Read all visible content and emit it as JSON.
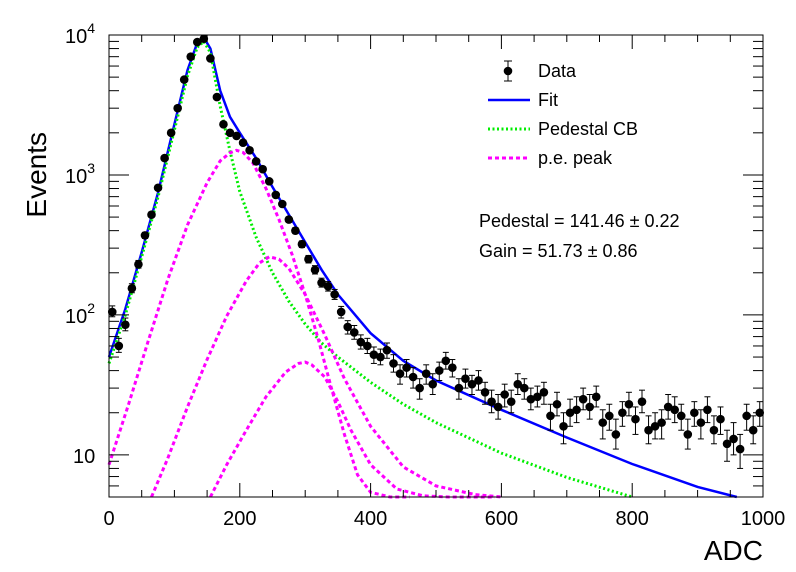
{
  "chart_data": {
    "type": "scatter",
    "xlabel": "ADC",
    "ylabel": "Events",
    "xlim": [
      0,
      1000
    ],
    "ylim": [
      5,
      10000
    ],
    "y_scale": "log",
    "grid": false,
    "legend_position": "top-right",
    "x_ticks": [
      {
        "value": 0,
        "label": "0"
      },
      {
        "value": 200,
        "label": "200"
      },
      {
        "value": 400,
        "label": "400"
      },
      {
        "value": 600,
        "label": "600"
      },
      {
        "value": 800,
        "label": "800"
      },
      {
        "value": 1000,
        "label": "1000"
      }
    ],
    "y_ticks": [
      {
        "value": 10,
        "label": "10",
        "sup": ""
      },
      {
        "value": 100,
        "label": "10",
        "sup": "2"
      },
      {
        "value": 1000,
        "label": "10",
        "sup": "3"
      },
      {
        "value": 10000,
        "label": "10",
        "sup": "4"
      }
    ],
    "legend": [
      {
        "label": "Data",
        "style": "marker",
        "color": "#000000"
      },
      {
        "label": "Fit",
        "style": "solid",
        "color": "#0000ff"
      },
      {
        "label": "Pedestal CB",
        "style": "dotted",
        "color": "#00ee00"
      },
      {
        "label": "p.e. peak",
        "style": "dashed",
        "color": "#ff00ff"
      }
    ],
    "annotations": [
      {
        "text": "Pedestal = 141.46 ± 0.22"
      },
      {
        "text": "Gain = 51.73 ± 0.86"
      }
    ],
    "series": [
      {
        "name": "Data",
        "style": "points",
        "color": "#000000",
        "x": [
          5,
          15,
          25,
          35,
          45,
          55,
          65,
          75,
          85,
          95,
          105,
          115,
          125,
          135,
          145,
          155,
          165,
          175,
          185,
          195,
          205,
          215,
          225,
          235,
          245,
          255,
          265,
          275,
          285,
          295,
          305,
          315,
          325,
          335,
          345,
          355,
          365,
          375,
          385,
          395,
          405,
          415,
          425,
          435,
          445,
          455,
          465,
          475,
          485,
          495,
          505,
          515,
          525,
          535,
          545,
          555,
          565,
          575,
          585,
          595,
          605,
          615,
          625,
          635,
          645,
          655,
          665,
          675,
          685,
          695,
          705,
          715,
          725,
          735,
          745,
          755,
          765,
          775,
          785,
          795,
          805,
          815,
          825,
          835,
          845,
          855,
          865,
          875,
          885,
          895,
          905,
          915,
          925,
          935,
          945,
          955,
          965,
          975,
          985,
          995
        ],
        "y": [
          105,
          60,
          85,
          155,
          230,
          370,
          520,
          810,
          1320,
          2000,
          3000,
          4800,
          7000,
          8900,
          9400,
          6800,
          3600,
          2300,
          2000,
          1900,
          1700,
          1500,
          1250,
          1100,
          900,
          720,
          620,
          480,
          400,
          320,
          250,
          210,
          170,
          160,
          140,
          105,
          82,
          75,
          64,
          60,
          52,
          50,
          56,
          45,
          38,
          42,
          36,
          30,
          38,
          32,
          40,
          47,
          42,
          30,
          35,
          32,
          34,
          28,
          24,
          22,
          27,
          24,
          32,
          30,
          25,
          26,
          28,
          19,
          23,
          16,
          20,
          21,
          25,
          22,
          26,
          17,
          19,
          14,
          20,
          23,
          18,
          24,
          15,
          16,
          17,
          22,
          21,
          19,
          14,
          20,
          17,
          21,
          15,
          18,
          12,
          13,
          11,
          19,
          15,
          20
        ],
        "err_lo": [
          8,
          6,
          8,
          11,
          14,
          18,
          21,
          27,
          35,
          43,
          53,
          68,
          82,
          92,
          95,
          80,
          58,
          47,
          44,
          43,
          40,
          38,
          34,
          32,
          29,
          26,
          24,
          21,
          19,
          17,
          15,
          14,
          12,
          12,
          11,
          10,
          9,
          8,
          7,
          7,
          7,
          6,
          7,
          6,
          6,
          6,
          6,
          5,
          6,
          5,
          6,
          6,
          6,
          5,
          5,
          5,
          5,
          5,
          4,
          4,
          5,
          4,
          5,
          5,
          4,
          4,
          5,
          4,
          4,
          4,
          4,
          4,
          4,
          4,
          4,
          4,
          4,
          3,
          4,
          4,
          4,
          4,
          3,
          3,
          4,
          4,
          4,
          4,
          3,
          4,
          4,
          4,
          3,
          4,
          3,
          3,
          3,
          4,
          3,
          4
        ],
        "err_hi": [
          11,
          8,
          10,
          12,
          15,
          19,
          23,
          29,
          37,
          45,
          55,
          70,
          84,
          94,
          97,
          82,
          60,
          49,
          45,
          44,
          42,
          39,
          36,
          34,
          30,
          27,
          25,
          22,
          20,
          18,
          16,
          15,
          13,
          13,
          12,
          10,
          9,
          9,
          8,
          8,
          7,
          7,
          7,
          7,
          6,
          6,
          6,
          5,
          6,
          6,
          6,
          7,
          6,
          5,
          6,
          5,
          6,
          5,
          5,
          5,
          5,
          5,
          6,
          5,
          5,
          5,
          5,
          4,
          5,
          4,
          5,
          5,
          5,
          5,
          5,
          4,
          4,
          4,
          4,
          5,
          4,
          5,
          4,
          4,
          4,
          5,
          5,
          4,
          4,
          4,
          4,
          5,
          4,
          4,
          3,
          4,
          3,
          4,
          4,
          4
        ]
      },
      {
        "name": "Fit",
        "style": "solid",
        "color": "#0000ff",
        "x": [
          0,
          25,
          50,
          75,
          100,
          120,
          135,
          145,
          155,
          170,
          185,
          200,
          225,
          250,
          275,
          300,
          325,
          350,
          400,
          450,
          500,
          600,
          700,
          800,
          900,
          960
        ],
        "y": [
          50,
          110,
          280,
          750,
          2300,
          5600,
          8800,
          9600,
          8000,
          4000,
          2600,
          2000,
          1320,
          820,
          520,
          330,
          210,
          140,
          74,
          47,
          34,
          21,
          13.3,
          8.6,
          5.9,
          5.0
        ]
      },
      {
        "name": "Pedestal CB",
        "style": "dotted",
        "color": "#00ee00",
        "x": [
          0,
          25,
          50,
          75,
          100,
          120,
          135,
          145,
          155,
          170,
          185,
          200,
          225,
          250,
          275,
          300,
          325,
          350,
          400,
          450,
          500,
          600,
          700,
          800
        ],
        "y": [
          45,
          100,
          260,
          700,
          2100,
          5100,
          8200,
          9000,
          7500,
          3100,
          1480,
          760,
          360,
          200,
          125,
          86,
          63,
          50,
          33,
          23,
          17,
          10.3,
          6.9,
          5.0
        ]
      },
      {
        "name": "p.e. peak 1",
        "style": "dashed",
        "color": "#ff00ff",
        "x": [
          0,
          30,
          60,
          90,
          120,
          150,
          170,
          185,
          195,
          205,
          220,
          240,
          260,
          280,
          300,
          320,
          340,
          360,
          380,
          400,
          430,
          460
        ],
        "y": [
          8.5,
          23,
          65,
          180,
          440,
          880,
          1260,
          1440,
          1500,
          1450,
          1220,
          800,
          480,
          270,
          140,
          67,
          30,
          14,
          7.2,
          5.4,
          5.0,
          5.0
        ]
      },
      {
        "name": "p.e. peak 2",
        "style": "dashed",
        "color": "#ff00ff",
        "x": [
          65,
          90,
          120,
          150,
          180,
          210,
          230,
          245,
          260,
          275,
          300,
          330,
          360,
          400,
          450,
          500,
          560,
          600
        ],
        "y": [
          5.0,
          9.5,
          22,
          48,
          98,
          175,
          235,
          260,
          250,
          215,
          140,
          72,
          35,
          16,
          8.2,
          6.0,
          5.2,
          5.0
        ]
      },
      {
        "name": "p.e. peak 3",
        "style": "dashed",
        "color": "#ff00ff",
        "x": [
          155,
          180,
          210,
          240,
          270,
          290,
          300,
          310,
          330,
          350,
          370,
          400,
          440,
          480,
          520,
          560,
          590
        ],
        "y": [
          5.0,
          8.5,
          15,
          26,
          39,
          45,
          46,
          44,
          36,
          24,
          15,
          8.5,
          5.7,
          5.1,
          5.0,
          5.0,
          5.0
        ]
      }
    ]
  }
}
